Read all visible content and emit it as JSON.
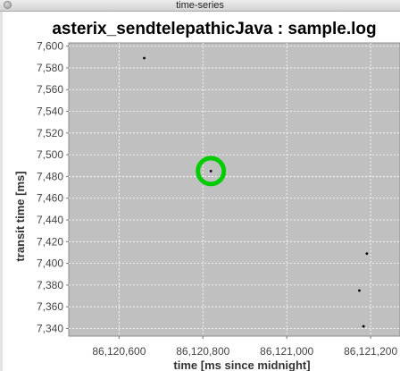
{
  "window": {
    "title": "time-series"
  },
  "colors": {
    "plot_background": "#c0c0c0",
    "gridline": "#ffffff",
    "point": "#000000",
    "highlight": "#00cc00"
  },
  "chart_data": {
    "type": "scatter",
    "title": "asterix_sendtelepathicJava : sample.log",
    "xlabel": "time [ms since midnight]",
    "ylabel": "transit time [ms]",
    "xlim": [
      86120480,
      86121270
    ],
    "ylim": [
      7333,
      7603
    ],
    "grid": true,
    "x_ticks": [
      86120600,
      86120800,
      86121000,
      86121200
    ],
    "x_tick_labels": [
      "86,120,600",
      "86,120,800",
      "86,121,000",
      "86,121,200"
    ],
    "y_ticks": [
      7340,
      7360,
      7380,
      7400,
      7420,
      7440,
      7460,
      7480,
      7500,
      7520,
      7540,
      7560,
      7580,
      7600
    ],
    "y_tick_labels": [
      "7,340",
      "7,360",
      "7,380",
      "7,400",
      "7,420",
      "7,440",
      "7,460",
      "7,480",
      "7,500",
      "7,520",
      "7,540",
      "7,560",
      "7,580",
      "7,600"
    ],
    "series": [
      {
        "points": [
          {
            "x": 86120660,
            "y": 7589
          },
          {
            "x": 86120819,
            "y": 7485
          },
          {
            "x": 86121191,
            "y": 7409
          },
          {
            "x": 86121173,
            "y": 7375
          },
          {
            "x": 86121183,
            "y": 7342
          }
        ]
      }
    ],
    "highlighted_point_index": 1
  }
}
